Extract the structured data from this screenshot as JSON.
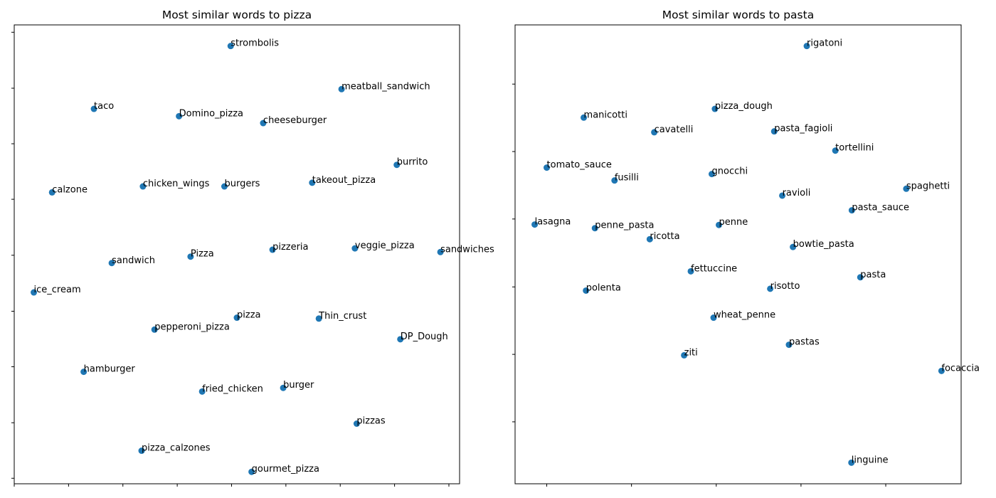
{
  "chart_data": [
    {
      "type": "scatter",
      "title": "Most similar words to pizza",
      "xlabel": "",
      "ylabel": "",
      "xlim": [
        0,
        100
      ],
      "ylim": [
        0,
        100
      ],
      "xticks": [
        0,
        12.2,
        24.4,
        36.6,
        48.8,
        61.0,
        73.2,
        85.4,
        97.6
      ],
      "yticks": [
        1.2,
        13.3,
        25.5,
        37.6,
        49.8,
        62.0,
        74.1,
        86.2,
        98.4
      ],
      "tick_labels_visible": false,
      "grid": false,
      "color": "#1f77b4",
      "points": [
        {
          "label": "strombolis",
          "x": 48.6,
          "y": 95.4
        },
        {
          "label": "meatball_sandwich",
          "x": 73.5,
          "y": 86.0
        },
        {
          "label": "taco",
          "x": 17.9,
          "y": 81.7
        },
        {
          "label": "Domino_pizza",
          "x": 37.0,
          "y": 80.1
        },
        {
          "label": "cheeseburger",
          "x": 55.9,
          "y": 78.6
        },
        {
          "label": "burrito",
          "x": 85.9,
          "y": 69.5
        },
        {
          "label": "takeout_pizza",
          "x": 66.9,
          "y": 65.6
        },
        {
          "label": "chicken_wings",
          "x": 28.9,
          "y": 64.8
        },
        {
          "label": "burgers",
          "x": 47.2,
          "y": 64.8
        },
        {
          "label": "calzone",
          "x": 8.5,
          "y": 63.5
        },
        {
          "label": "veggie_pizza",
          "x": 76.5,
          "y": 51.3
        },
        {
          "label": "pizzeria",
          "x": 58.0,
          "y": 51.0
        },
        {
          "label": "sandwiches",
          "x": 95.7,
          "y": 50.5
        },
        {
          "label": "Pizza",
          "x": 39.6,
          "y": 49.5
        },
        {
          "label": "sandwich",
          "x": 21.9,
          "y": 48.1
        },
        {
          "label": "ice_cream",
          "x": 4.4,
          "y": 41.7
        },
        {
          "label": "pizza",
          "x": 50.0,
          "y": 36.2
        },
        {
          "label": "Thin_crust",
          "x": 68.4,
          "y": 36.0
        },
        {
          "label": "pepperoni_pizza",
          "x": 31.5,
          "y": 33.6
        },
        {
          "label": "DP_Dough",
          "x": 86.7,
          "y": 31.5
        },
        {
          "label": "hamburger",
          "x": 15.6,
          "y": 24.4
        },
        {
          "label": "burger",
          "x": 60.4,
          "y": 20.9
        },
        {
          "label": "fried_chicken",
          "x": 42.2,
          "y": 20.1
        },
        {
          "label": "pizzas",
          "x": 76.9,
          "y": 13.1
        },
        {
          "label": "pizza_calzones",
          "x": 28.6,
          "y": 7.2
        },
        {
          "label": "gourmet_pizza",
          "x": 53.3,
          "y": 2.6
        }
      ]
    },
    {
      "type": "scatter",
      "title": "Most similar words to pasta",
      "xlabel": "",
      "ylabel": "",
      "xlim": [
        0,
        100
      ],
      "ylim": [
        0,
        100
      ],
      "xticks": [
        7.1,
        26.1,
        45.1,
        64.1,
        83.1
      ],
      "yticks": [
        13.5,
        28.2,
        42.9,
        57.7,
        72.4,
        87.1
      ],
      "tick_labels_visible": false,
      "grid": false,
      "color": "#1f77b4",
      "points": [
        {
          "label": "rigatoni",
          "x": 65.4,
          "y": 95.4
        },
        {
          "label": "pizza_dough",
          "x": 44.8,
          "y": 81.7
        },
        {
          "label": "manicotti",
          "x": 15.4,
          "y": 79.8
        },
        {
          "label": "cavatelli",
          "x": 31.2,
          "y": 76.6
        },
        {
          "label": "pasta_fagioli",
          "x": 58.1,
          "y": 76.8
        },
        {
          "label": "tortellini",
          "x": 71.8,
          "y": 72.6
        },
        {
          "label": "tomato_sauce",
          "x": 7.1,
          "y": 68.9
        },
        {
          "label": "gnocchi",
          "x": 44.1,
          "y": 67.5
        },
        {
          "label": "fusilli",
          "x": 22.3,
          "y": 66.1
        },
        {
          "label": "spaghetti",
          "x": 87.7,
          "y": 64.3
        },
        {
          "label": "ravioli",
          "x": 59.9,
          "y": 62.8
        },
        {
          "label": "pasta_sauce",
          "x": 75.5,
          "y": 59.6
        },
        {
          "label": "lasagna",
          "x": 4.4,
          "y": 56.5
        },
        {
          "label": "penne",
          "x": 45.7,
          "y": 56.4
        },
        {
          "label": "penne_pasta",
          "x": 17.9,
          "y": 55.7
        },
        {
          "label": "ricotta",
          "x": 30.2,
          "y": 53.3
        },
        {
          "label": "bowtie_pasta",
          "x": 62.3,
          "y": 51.6
        },
        {
          "label": "fettuccine",
          "x": 39.4,
          "y": 46.3
        },
        {
          "label": "pasta",
          "x": 77.4,
          "y": 45.0
        },
        {
          "label": "risotto",
          "x": 57.2,
          "y": 42.5
        },
        {
          "label": "polenta",
          "x": 15.9,
          "y": 42.1
        },
        {
          "label": "wheat_penne",
          "x": 44.5,
          "y": 36.2
        },
        {
          "label": "pastas",
          "x": 61.4,
          "y": 30.3
        },
        {
          "label": "ziti",
          "x": 37.9,
          "y": 28.0
        },
        {
          "label": "focaccia",
          "x": 95.6,
          "y": 24.6
        },
        {
          "label": "linguine",
          "x": 75.4,
          "y": 4.6
        }
      ]
    }
  ]
}
